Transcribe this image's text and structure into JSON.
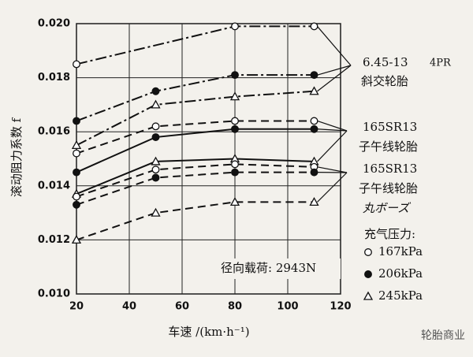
{
  "chart_data": {
    "type": "line",
    "xlabel": "车速 /(km·h⁻¹)",
    "ylabel": "滚动阻力系数 f",
    "xlim": [
      20,
      120
    ],
    "xticks": [
      20,
      40,
      60,
      80,
      100,
      120
    ],
    "ylim": [
      0.01,
      0.02
    ],
    "yticks": [
      {
        "value": 0.01,
        "label": "0.010"
      },
      {
        "value": 0.012,
        "label": "0.012"
      },
      {
        "value": 0.014,
        "label": "0.014"
      },
      {
        "value": 0.016,
        "label": "0.016"
      },
      {
        "value": 0.018,
        "label": "0.018"
      },
      {
        "value": 0.02,
        "label": "0.020"
      }
    ],
    "grid": true,
    "legend_title": "充气压力:",
    "legend": [
      {
        "label": "167kPa",
        "marker": "open-circle"
      },
      {
        "label": "206kPa",
        "marker": "filled-circle"
      },
      {
        "label": "245kPa",
        "marker": "open-triangle"
      }
    ],
    "series": [
      {
        "marker": "open-circle",
        "dash": "dashdot",
        "color": "#111",
        "x": [
          20,
          80,
          110
        ],
        "values": [
          0.0185,
          0.0199,
          0.0199
        ]
      },
      {
        "marker": "filled-circle",
        "dash": "dashdot",
        "color": "#111",
        "x": [
          20,
          50,
          80,
          110
        ],
        "values": [
          0.0164,
          0.0175,
          0.0181,
          0.0181
        ]
      },
      {
        "marker": "open-triangle",
        "dash": "dashdot",
        "color": "#111",
        "x": [
          20,
          50,
          80,
          110
        ],
        "values": [
          0.0155,
          0.017,
          0.0173,
          0.0175
        ]
      },
      {
        "marker": "open-circle",
        "dash": "dashed",
        "color": "#111",
        "x": [
          20,
          50,
          80,
          110
        ],
        "values": [
          0.0152,
          0.0162,
          0.0164,
          0.0164
        ]
      },
      {
        "marker": "filled-circle",
        "dash": "solid",
        "color": "#111",
        "x": [
          20,
          50,
          80,
          110
        ],
        "values": [
          0.0145,
          0.0158,
          0.0161,
          0.0161
        ]
      },
      {
        "marker": "open-triangle",
        "dash": "solid",
        "color": "#111",
        "x": [
          20,
          50,
          80,
          110
        ],
        "values": [
          0.0137,
          0.0149,
          0.015,
          0.0149
        ]
      },
      {
        "marker": "open-circle",
        "dash": "dashed",
        "color": "#111",
        "x": [
          20,
          50,
          80,
          110
        ],
        "values": [
          0.0136,
          0.0146,
          0.0148,
          0.0147
        ]
      },
      {
        "marker": "filled-circle",
        "dash": "dashed",
        "color": "#111",
        "x": [
          20,
          50,
          80,
          110
        ],
        "values": [
          0.0133,
          0.0143,
          0.0145,
          0.0145
        ]
      },
      {
        "marker": "open-triangle",
        "dash": "dashed",
        "color": "#111",
        "x": [
          20,
          50,
          80,
          110
        ],
        "values": [
          0.012,
          0.013,
          0.0134,
          0.0134
        ]
      }
    ],
    "annotations": [
      "6.45-13",
      "4PR",
      "斜交轮胎",
      "165SR13",
      "子午线轮胎",
      "165SR13",
      "子午线轮胎",
      "丸ボーズ",
      "径向载荷: 2943N",
      "轮胎商业"
    ]
  }
}
